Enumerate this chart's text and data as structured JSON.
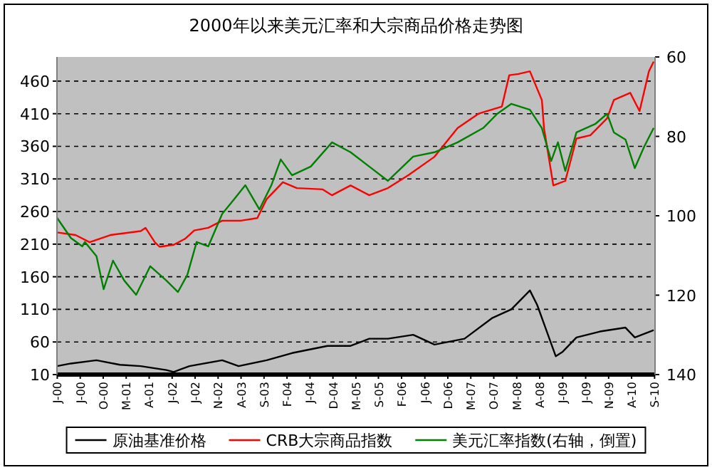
{
  "chart_data": {
    "type": "line",
    "title": "2000年以来美元汇率和大宗商品价格走势图",
    "xlim": [
      "2000-01-01",
      "2010-09-10"
    ],
    "xticks": [
      {
        "value": "2000-01-03",
        "label": "J-00"
      },
      {
        "value": "2000-06-01",
        "label": "J-00"
      },
      {
        "value": "2000-10-29",
        "label": "O-00"
      },
      {
        "value": "2001-03-28",
        "label": "M-01"
      },
      {
        "value": "2001-08-25",
        "label": "A-01"
      },
      {
        "value": "2002-01-22",
        "label": "J-02"
      },
      {
        "value": "2002-06-21",
        "label": "J-02"
      },
      {
        "value": "2002-11-18",
        "label": "N-02"
      },
      {
        "value": "2003-04-17",
        "label": "A-03"
      },
      {
        "value": "2003-09-14",
        "label": "S-03"
      },
      {
        "value": "2004-02-11",
        "label": "F-04"
      },
      {
        "value": "2004-07-10",
        "label": "J-04"
      },
      {
        "value": "2004-12-07",
        "label": "D-04"
      },
      {
        "value": "2005-05-06",
        "label": "M-05"
      },
      {
        "value": "2005-09-30",
        "label": "S-05"
      },
      {
        "value": "2006-02-28",
        "label": "F-06"
      },
      {
        "value": "2006-07-30",
        "label": "J-06"
      },
      {
        "value": "2006-12-27",
        "label": "D-06"
      },
      {
        "value": "2007-05-26",
        "label": "M-07"
      },
      {
        "value": "2007-10-23",
        "label": "O-07"
      },
      {
        "value": "2008-03-21",
        "label": "M-08"
      },
      {
        "value": "2008-08-18",
        "label": "A-08"
      },
      {
        "value": "2009-01-15",
        "label": "J-09"
      },
      {
        "value": "2009-06-14",
        "label": "J-09"
      },
      {
        "value": "2009-11-11",
        "label": "N-09"
      },
      {
        "value": "2010-04-10",
        "label": "A-10"
      },
      {
        "value": "2010-09-07",
        "label": "S-10"
      }
    ],
    "ylim": [
      10,
      497
    ],
    "yticks": [
      10,
      60,
      110,
      160,
      210,
      260,
      310,
      360,
      410,
      460
    ],
    "y2lim": [
      140,
      60
    ],
    "y2ticks": [
      60,
      80,
      100,
      120,
      140
    ],
    "grid": "y",
    "legend": "bottom",
    "series": [
      {
        "name": "原油基准价格",
        "color": "#000000",
        "x": [
          "2000-01-01",
          "2000-04-01",
          "2000-09-15",
          "2001-02-15",
          "2001-07-01",
          "2001-12-15",
          "2002-02-01",
          "2002-05-15",
          "2002-12-15",
          "2003-04-01",
          "2003-10-01",
          "2004-03-15",
          "2004-11-01",
          "2005-04-01",
          "2005-08-01",
          "2005-12-01",
          "2006-05-15",
          "2006-10-01",
          "2007-04-15",
          "2007-10-15",
          "2008-02-15",
          "2008-06-15",
          "2008-08-01",
          "2008-12-01",
          "2009-01-15",
          "2009-04-15",
          "2009-09-15",
          "2010-03-01",
          "2010-05-01",
          "2010-09-01"
        ],
        "values": [
          23,
          27,
          32,
          25,
          23,
          17,
          14,
          23,
          32,
          23,
          32,
          43,
          54,
          54,
          65,
          65,
          71,
          56,
          65,
          97,
          110,
          139,
          117,
          38,
          45,
          67,
          76,
          82,
          67,
          78
        ]
      },
      {
        "name": "CRB大宗商品指数",
        "color": "#ff0000",
        "x": [
          "2000-01-01",
          "2000-05-01",
          "2000-08-01",
          "2000-12-15",
          "2001-07-01",
          "2001-08-01",
          "2001-10-01",
          "2001-11-01",
          "2002-02-01",
          "2002-04-15",
          "2002-06-15",
          "2002-09-15",
          "2002-12-15",
          "2003-04-15",
          "2003-08-01",
          "2003-10-01",
          "2004-01-15",
          "2004-04-15",
          "2004-10-01",
          "2004-12-01",
          "2005-04-01",
          "2005-08-01",
          "2005-12-01",
          "2006-04-15",
          "2006-10-01",
          "2007-03-01",
          "2007-07-15",
          "2007-12-15",
          "2008-02-01",
          "2008-04-01",
          "2008-06-15",
          "2008-09-01",
          "2008-09-15",
          "2008-11-15",
          "2009-02-01",
          "2009-04-15",
          "2009-07-15",
          "2009-11-01",
          "2009-12-15",
          "2010-04-01",
          "2010-06-01",
          "2010-08-01",
          "2010-09-01"
        ],
        "values": [
          228,
          224,
          213,
          224,
          230,
          235,
          213,
          206,
          209,
          218,
          231,
          235,
          246,
          246,
          250,
          279,
          305,
          296,
          294,
          285,
          300,
          285,
          296,
          316,
          344,
          388,
          410,
          421,
          469,
          471,
          475,
          431,
          388,
          300,
          307,
          372,
          377,
          403,
          431,
          442,
          414,
          475,
          490
        ]
      },
      {
        "name": "美元汇率指数(右轴，倒置)",
        "color": "#008000",
        "axis": "y2",
        "x": [
          "2000-01-01",
          "2000-04-01",
          "2000-06-15",
          "2000-07-01",
          "2000-09-15",
          "2000-11-01",
          "2001-01-01",
          "2001-03-15",
          "2001-06-01",
          "2001-09-01",
          "2001-12-15",
          "2002-03-01",
          "2002-05-01",
          "2002-07-01",
          "2002-09-15",
          "2002-12-15",
          "2003-03-01",
          "2003-05-15",
          "2003-08-15",
          "2003-11-01",
          "2004-01-01",
          "2004-03-15",
          "2004-07-15",
          "2004-12-01",
          "2005-04-01",
          "2005-08-01",
          "2005-12-01",
          "2006-05-15",
          "2006-10-01",
          "2007-03-01",
          "2007-08-15",
          "2007-11-15",
          "2008-02-15",
          "2008-06-15",
          "2008-09-01",
          "2008-11-01",
          "2008-12-15",
          "2009-02-01",
          "2009-04-15",
          "2009-08-15",
          "2009-11-01",
          "2009-12-15",
          "2010-03-01",
          "2010-05-01",
          "2010-07-01",
          "2010-09-01"
        ],
        "values": [
          100.5,
          105.6,
          107.7,
          106.6,
          110.2,
          118.5,
          111.3,
          116.3,
          119.9,
          112.7,
          116.3,
          119.2,
          114.9,
          106.6,
          107.7,
          99.5,
          95.9,
          92.3,
          98.4,
          92.3,
          85.8,
          89.8,
          87.6,
          81.5,
          84.0,
          87.6,
          91.2,
          85.1,
          84.0,
          81.5,
          77.9,
          74.3,
          71.8,
          73.3,
          77.9,
          86.2,
          81.5,
          88.7,
          79.0,
          76.9,
          74.3,
          79.0,
          80.8,
          88.0,
          82.6,
          77.9
        ]
      }
    ]
  }
}
